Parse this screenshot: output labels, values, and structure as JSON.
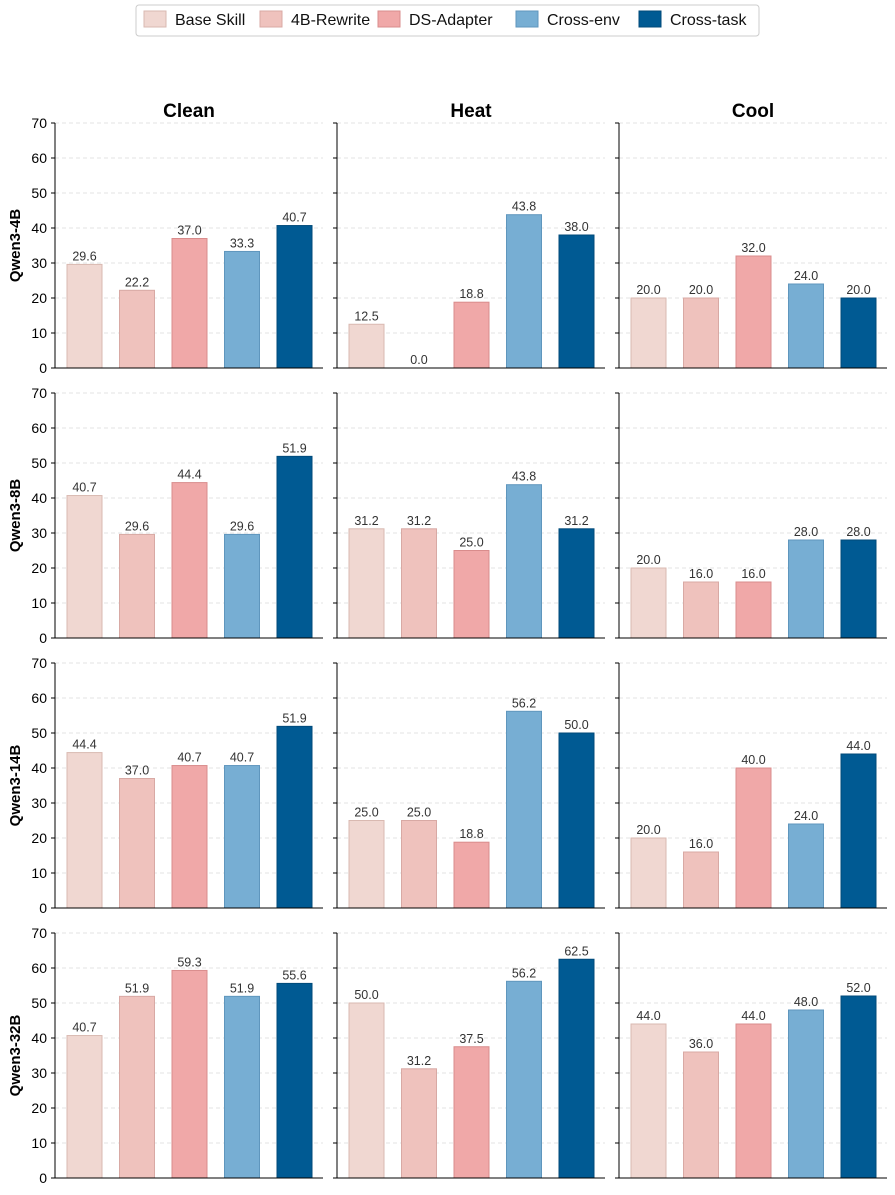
{
  "chart_data": {
    "type": "bar",
    "legend": {
      "placement": "top-center",
      "entries": [
        {
          "name": "Base Skill",
          "color": "#f0d7d1"
        },
        {
          "name": "4B-Rewrite",
          "color": "#efc2bd"
        },
        {
          "name": "DS-Adapter",
          "color": "#f0a8a8"
        },
        {
          "name": "Cross-env",
          "color": "#77aed3"
        },
        {
          "name": "Cross-task",
          "color": "#005a93"
        }
      ]
    },
    "column_titles": [
      "Clean",
      "Heat",
      "Cool"
    ],
    "row_labels": [
      "Qwen3-4B",
      "Qwen3-8B",
      "Qwen3-14B",
      "Qwen3-32B"
    ],
    "ylim": [
      0,
      70
    ],
    "yticks": [
      "0",
      "10",
      "20",
      "30",
      "40",
      "50",
      "60",
      "70"
    ],
    "grid": "horizontal dashed",
    "values": [
      [
        [
          29.6,
          22.2,
          37.0,
          33.3,
          40.7
        ],
        [
          12.5,
          0.0,
          18.8,
          43.8,
          38.0
        ],
        [
          20.0,
          20.0,
          32.0,
          24.0,
          20.0
        ]
      ],
      [
        [
          40.7,
          29.6,
          44.4,
          29.6,
          51.9
        ],
        [
          31.2,
          31.2,
          25.0,
          43.8,
          31.2
        ],
        [
          20.0,
          16.0,
          16.0,
          28.0,
          28.0
        ]
      ],
      [
        [
          44.4,
          37.0,
          40.7,
          40.7,
          51.9
        ],
        [
          25.0,
          25.0,
          18.8,
          56.2,
          50.0
        ],
        [
          20.0,
          16.0,
          40.0,
          24.0,
          44.0
        ]
      ],
      [
        [
          40.7,
          51.9,
          59.3,
          51.9,
          55.6
        ],
        [
          50.0,
          31.2,
          37.5,
          56.2,
          62.5
        ],
        [
          44.0,
          36.0,
          44.0,
          48.0,
          52.0
        ]
      ]
    ]
  }
}
